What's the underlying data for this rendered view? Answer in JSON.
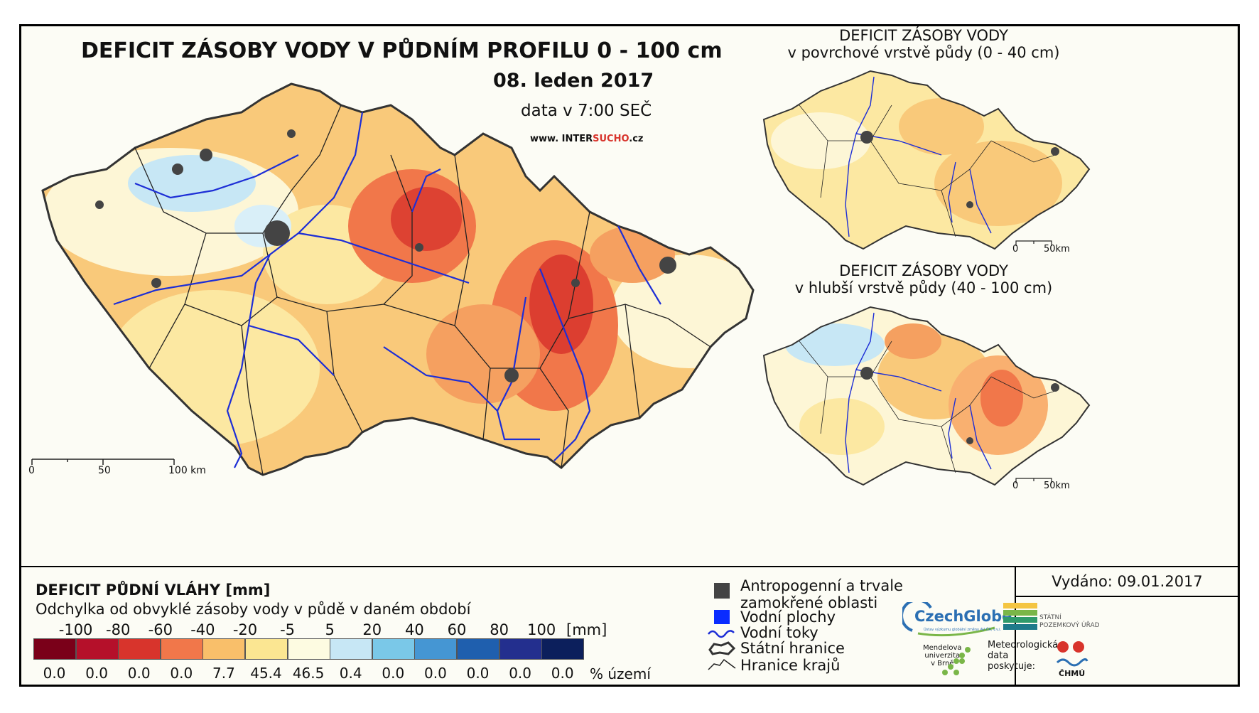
{
  "main_map": {
    "title": "DEFICIT ZÁSOBY VODY V PŮDNÍM PROFILU 0 - 100 cm",
    "date": "08. leden 2017",
    "data_time": "data v 7:00 SEČ",
    "website_prefix": "www. INTER",
    "website_highlight": "SUCHO",
    "website_suffix": ".cz",
    "scale_labels": [
      "0",
      "50",
      "100 km"
    ]
  },
  "inset_top": {
    "title_line1": "DEFICIT ZÁSOBY VODY",
    "title_line2": "v povrchové vrstvě půdy (0 - 40 cm)",
    "scale_labels": [
      "0",
      "50km"
    ]
  },
  "inset_bottom": {
    "title_line1": "DEFICIT ZÁSOBY VODY",
    "title_line2": "v hlubší vrstvě půdy (40 - 100 cm)",
    "scale_labels": [
      "0",
      "50km"
    ]
  },
  "legend": {
    "title": "DEFICIT PŮDNÍ VLÁHY [mm]",
    "subtitle": "Odchylka od obvyklé zásoby vody v půdě v daném období",
    "ticks": [
      "-100",
      "-80",
      "-60",
      "-40",
      "-20",
      "-5",
      "5",
      "20",
      "40",
      "60",
      "80",
      "100"
    ],
    "tick_unit": "[mm]",
    "percentages": [
      "0.0",
      "0.0",
      "0.0",
      "0.0",
      "7.7",
      "45.4",
      "46.5",
      "0.4",
      "0.0",
      "0.0",
      "0.0",
      "0.0",
      "0.0"
    ],
    "percent_unit": "% území",
    "colors": [
      "#7a0019",
      "#b5102a",
      "#d8342c",
      "#f1774a",
      "#f9bf6a",
      "#fbe692",
      "#fdfbe1",
      "#c7e7f5",
      "#7ac8e8",
      "#4596d3",
      "#1f5fae",
      "#232f8e",
      "#0c1f5c"
    ]
  },
  "symbols": {
    "urban": "Antropogenní a trvale",
    "urban2": "zamokřené oblasti",
    "water_bodies": "Vodní plochy",
    "rivers": "Vodní toky",
    "state_border": "Státní hranice",
    "region_border": "Hranice krajů"
  },
  "issue": {
    "issued": "Vydáno: 09.01.2017",
    "czechglobe": "CzechGlobe",
    "czechglobe_sub": "Ústav výzkumu globální změny AV ČR, v.v.i.",
    "spu_line1": "STÁTNÍ",
    "spu_line2": "POZEMKOVÝ ÚŘAD",
    "mendel_line1": "Mendelova",
    "mendel_line2": "univerzita",
    "mendel_line3": "v Brně",
    "meteo_line1": "Meteorologická",
    "meteo_line2": "data",
    "meteo_line3": "poskytuje:",
    "chmu": "ČHMÚ"
  }
}
